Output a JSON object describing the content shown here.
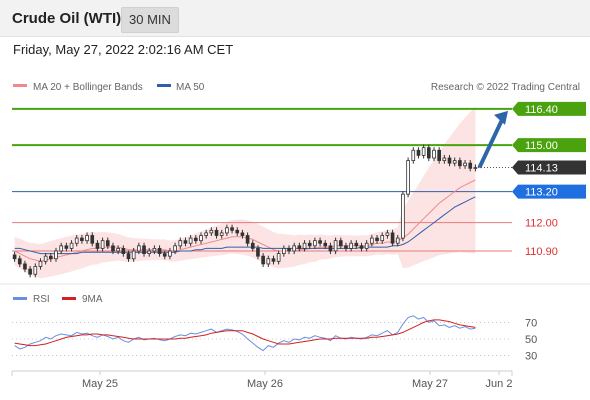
{
  "header": {
    "title": "Crude Oil (WTI)",
    "timeframe": "30 MIN"
  },
  "datetime": "Friday, May 27, 2022 2:02:16 AM CET",
  "legend": {
    "ma20_label": "MA 20 + Bollinger Bands",
    "ma50_label": "MA 50",
    "copyright": "Research © 2022 Trading Central",
    "rsi_label": "RSI",
    "ma9_label": "9MA"
  },
  "colors": {
    "resistance": "#4aa30e",
    "support": "#e87a7a",
    "ma50": "#2f5fa8",
    "ma20": "#f08a8a",
    "bollinger_fill": "#fde4e4",
    "arrow": "#2d66a8",
    "current_price_bg": "#333333",
    "ma50_label_bg": "#1f6fe0",
    "rsi_line": "#6a8fe0",
    "rsi_ma": "#d32020"
  },
  "chart_data": [
    {
      "type": "candlestick",
      "title": "Crude Oil (WTI)",
      "timeframe": "30 MIN",
      "x_ticks": [
        "May 25",
        "May 26",
        "May 27",
        "Jun 2"
      ],
      "ylim": [
        109.7,
        116.9
      ],
      "current_price": 114.13,
      "levels": [
        {
          "value": 116.4,
          "label": "116.40",
          "kind": "resistance"
        },
        {
          "value": 115.0,
          "label": "115.00",
          "kind": "resistance"
        },
        {
          "value": 114.13,
          "label": "114.13",
          "kind": "current"
        },
        {
          "value": 113.2,
          "label": "113.20",
          "kind": "ma50"
        },
        {
          "value": 112.0,
          "label": "112.00",
          "kind": "support"
        },
        {
          "value": 110.9,
          "label": "110.90",
          "kind": "support"
        }
      ],
      "candles_close": [
        110.6,
        110.4,
        110.2,
        110.0,
        110.3,
        110.5,
        110.7,
        110.6,
        110.9,
        111.1,
        111.0,
        111.2,
        111.4,
        111.3,
        111.5,
        111.2,
        111.0,
        111.3,
        111.1,
        110.9,
        111.0,
        110.8,
        110.6,
        110.9,
        111.1,
        110.8,
        110.9,
        111.0,
        110.8,
        110.7,
        110.9,
        111.1,
        111.3,
        111.2,
        111.4,
        111.3,
        111.5,
        111.6,
        111.7,
        111.5,
        111.6,
        111.8,
        111.7,
        111.6,
        111.5,
        111.2,
        111.0,
        110.7,
        110.4,
        110.6,
        110.5,
        110.8,
        111.0,
        110.9,
        111.1,
        111.0,
        111.2,
        111.1,
        111.3,
        111.2,
        111.1,
        110.9,
        111.3,
        111.1,
        111.0,
        111.2,
        111.1,
        111.0,
        111.2,
        111.4,
        111.3,
        111.5,
        111.6,
        111.2,
        111.4,
        113.1,
        114.4,
        114.8,
        114.6,
        114.9,
        114.5,
        114.8,
        114.4,
        114.5,
        114.3,
        114.4,
        114.2,
        114.3,
        114.1,
        114.13
      ],
      "ma20": [
        110.9,
        110.8,
        110.7,
        110.6,
        110.55,
        110.5,
        110.55,
        110.6,
        110.65,
        110.7,
        110.75,
        110.8,
        110.85,
        110.9,
        110.95,
        111.0,
        111.0,
        111.05,
        111.05,
        111.05,
        111.05,
        111.0,
        110.95,
        110.95,
        110.95,
        110.95,
        110.95,
        110.95,
        110.95,
        110.95,
        110.9,
        110.9,
        110.95,
        111.0,
        111.05,
        111.1,
        111.15,
        111.2,
        111.25,
        111.3,
        111.35,
        111.4,
        111.45,
        111.45,
        111.45,
        111.4,
        111.35,
        111.25,
        111.15,
        111.05,
        110.95,
        110.9,
        110.9,
        110.9,
        110.9,
        110.95,
        110.95,
        111.0,
        111.0,
        111.05,
        111.05,
        111.05,
        111.1,
        111.1,
        111.1,
        111.1,
        111.1,
        111.1,
        111.1,
        111.15,
        111.2,
        111.2,
        111.25,
        111.25,
        111.3,
        111.4,
        111.55,
        111.75,
        111.95,
        112.15,
        112.35,
        112.55,
        112.75,
        112.9,
        113.05,
        113.2,
        113.35,
        113.45,
        113.55,
        113.65
      ],
      "ma50": [
        111.0,
        111.0,
        110.95,
        110.9,
        110.85,
        110.8,
        110.8,
        110.8,
        110.8,
        110.8,
        110.8,
        110.8,
        110.8,
        110.85,
        110.85,
        110.85,
        110.85,
        110.85,
        110.85,
        110.85,
        110.85,
        110.85,
        110.85,
        110.85,
        110.85,
        110.85,
        110.85,
        110.85,
        110.85,
        110.85,
        110.85,
        110.85,
        110.9,
        110.9,
        110.9,
        110.95,
        110.95,
        111.0,
        111.0,
        111.0,
        111.0,
        111.05,
        111.05,
        111.05,
        111.05,
        111.05,
        111.05,
        111.05,
        111.0,
        111.0,
        111.0,
        111.0,
        111.0,
        111.0,
        111.0,
        111.0,
        111.0,
        111.0,
        111.0,
        111.0,
        111.0,
        111.0,
        111.0,
        111.0,
        111.0,
        111.0,
        111.0,
        111.05,
        111.05,
        111.05,
        111.05,
        111.05,
        111.05,
        111.1,
        111.1,
        111.15,
        111.25,
        111.4,
        111.55,
        111.7,
        111.85,
        112.0,
        112.15,
        112.3,
        112.45,
        112.6,
        112.7,
        112.8,
        112.9,
        113.0
      ]
    },
    {
      "type": "line",
      "title": "RSI",
      "series": [
        {
          "name": "RSI",
          "values": [
            42,
            38,
            40,
            44,
            46,
            48,
            52,
            50,
            54,
            56,
            55,
            54,
            58,
            56,
            57,
            54,
            52,
            55,
            53,
            50,
            52,
            48,
            46,
            50,
            52,
            49,
            50,
            51,
            49,
            48,
            50,
            53,
            55,
            54,
            57,
            56,
            58,
            60,
            62,
            58,
            60,
            62,
            61,
            59,
            56,
            50,
            45,
            40,
            36,
            42,
            40,
            45,
            48,
            46,
            50,
            49,
            52,
            51,
            54,
            52,
            51,
            48,
            54,
            51,
            50,
            52,
            51,
            50,
            52,
            55,
            54,
            57,
            60,
            55,
            58,
            68,
            76,
            78,
            74,
            76,
            70,
            72,
            66,
            67,
            64,
            66,
            63,
            65,
            62,
            63
          ]
        },
        {
          "name": "9MA",
          "values": [
            45,
            44,
            43,
            42,
            42,
            43,
            44,
            46,
            48,
            50,
            52,
            53,
            54,
            55,
            55,
            56,
            56,
            55,
            55,
            54,
            53,
            52,
            51,
            50,
            50,
            50,
            50,
            50,
            50,
            50,
            50,
            50,
            51,
            51,
            52,
            53,
            54,
            55,
            57,
            58,
            59,
            60,
            60,
            60,
            60,
            58,
            56,
            53,
            50,
            48,
            46,
            44,
            44,
            44,
            45,
            46,
            47,
            48,
            49,
            50,
            50,
            50,
            51,
            51,
            51,
            51,
            51,
            51,
            51,
            52,
            52,
            53,
            54,
            55,
            56,
            58,
            61,
            64,
            67,
            70,
            72,
            73,
            73,
            72,
            71,
            69,
            67,
            66,
            65,
            64
          ]
        }
      ],
      "y_ticks": [
        70,
        50,
        30
      ],
      "ylim": [
        15,
        85
      ]
    }
  ]
}
